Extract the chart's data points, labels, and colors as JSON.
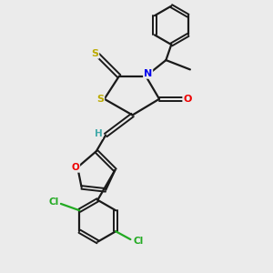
{
  "background_color": "#ebebeb",
  "bond_color": "#1a1a1a",
  "N_color": "#0000ee",
  "O_color": "#ee0000",
  "S_color": "#bbaa00",
  "Cl_color": "#22aa22",
  "H_color": "#44aaaa",
  "figsize": [
    3.0,
    3.0
  ],
  "dpi": 100,
  "xlim": [
    0,
    10
  ],
  "ylim": [
    0,
    10
  ]
}
